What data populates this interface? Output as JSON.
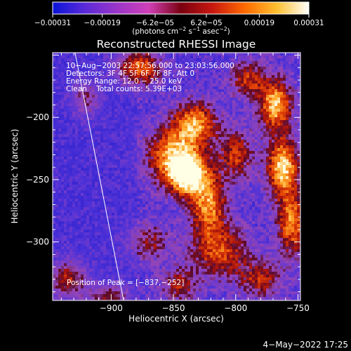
{
  "chart_data": {
    "type": "heatmap",
    "title": "Reconstructed RHESSI Image",
    "xlabel": "Heliocentric X (arcsec)",
    "ylabel": "Heliocentric Y (arcsec)",
    "xlim": [
      -947,
      -748
    ],
    "ylim": [
      -347,
      -148
    ],
    "x_ticks": [
      {
        "value": -900,
        "label": "−900"
      },
      {
        "value": -850,
        "label": "−850"
      },
      {
        "value": -800,
        "label": "−800"
      },
      {
        "value": -750,
        "label": "−750"
      }
    ],
    "y_ticks": [
      {
        "value": -200,
        "label": "−200"
      },
      {
        "value": -250,
        "label": "−250"
      },
      {
        "value": -300,
        "label": "−300"
      }
    ],
    "colorbar": {
      "units_label": "(photons cm",
      "units_parts": [
        "(photons cm",
        "−2",
        " s",
        "−1",
        " asec",
        "−2",
        ")"
      ],
      "range": [
        -0.00031,
        0.00031
      ],
      "colors": [
        "#0a14d8",
        "#5a2ad8",
        "#9a35c8",
        "#d040b8",
        "#7a0010",
        "#c81810",
        "#ff6a00",
        "#ffc030",
        "#ffffff"
      ],
      "ticks": [
        {
          "value": -0.00031,
          "label": "−0.00031"
        },
        {
          "value": -0.00019,
          "label": "−0.00019"
        },
        {
          "value": -6.2e-05,
          "label": "−6.2e−05"
        },
        {
          "value": 6.2e-05,
          "label": "6.2e−05"
        },
        {
          "value": 0.00019,
          "label": "0.00019"
        },
        {
          "value": 0.00031,
          "label": "0.00031"
        }
      ]
    },
    "annotations": [
      "10−Aug−2003 22:57:56.000 to 23:03:56.000",
      "Detectors: 3F 4F 5F 6F 7F 8F, Att 0",
      "Energy Range: 12.0 − 25.0 keV",
      "Clean    Total counts: 5.39E+03"
    ],
    "peak_label": "Position of Peak = [−837,−252]",
    "peak": {
      "x": -837,
      "y": -252
    },
    "limb_line": [
      [
        -929,
        -148
      ],
      [
        -890,
        -347
      ]
    ],
    "blobs": [
      {
        "x": -838,
        "y": -246,
        "amp": 1.0,
        "sx": 10,
        "sy": 11
      },
      {
        "x": -850,
        "y": -232,
        "amp": 0.85,
        "sx": 14,
        "sy": 16
      },
      {
        "x": -833,
        "y": -205,
        "amp": 0.8,
        "sx": 12,
        "sy": 12
      },
      {
        "x": -822,
        "y": -270,
        "amp": 0.78,
        "sx": 10,
        "sy": 18
      },
      {
        "x": -812,
        "y": -308,
        "amp": 0.6,
        "sx": 16,
        "sy": 14
      },
      {
        "x": -800,
        "y": -230,
        "amp": 0.55,
        "sx": 10,
        "sy": 14
      },
      {
        "x": -762,
        "y": -240,
        "amp": 0.95,
        "sx": 9,
        "sy": 16
      },
      {
        "x": -768,
        "y": -190,
        "amp": 0.9,
        "sx": 9,
        "sy": 14
      },
      {
        "x": -755,
        "y": -285,
        "amp": 0.75,
        "sx": 8,
        "sy": 18
      },
      {
        "x": -790,
        "y": -170,
        "amp": 0.55,
        "sx": 10,
        "sy": 10
      },
      {
        "x": -878,
        "y": -160,
        "amp": 0.7,
        "sx": 12,
        "sy": 10
      },
      {
        "x": -935,
        "y": -330,
        "amp": 0.55,
        "sx": 10,
        "sy": 10
      },
      {
        "x": -920,
        "y": -185,
        "amp": 0.35,
        "sx": 8,
        "sy": 10
      },
      {
        "x": -902,
        "y": -345,
        "amp": 0.45,
        "sx": 12,
        "sy": 8
      },
      {
        "x": -845,
        "y": -335,
        "amp": 0.45,
        "sx": 10,
        "sy": 10
      },
      {
        "x": -870,
        "y": -300,
        "amp": 0.4,
        "sx": 12,
        "sy": 10
      },
      {
        "x": -780,
        "y": -330,
        "amp": 0.5,
        "sx": 12,
        "sy": 10
      }
    ],
    "grid": false
  },
  "footer": {
    "date": "4−May−2022 17:25"
  }
}
